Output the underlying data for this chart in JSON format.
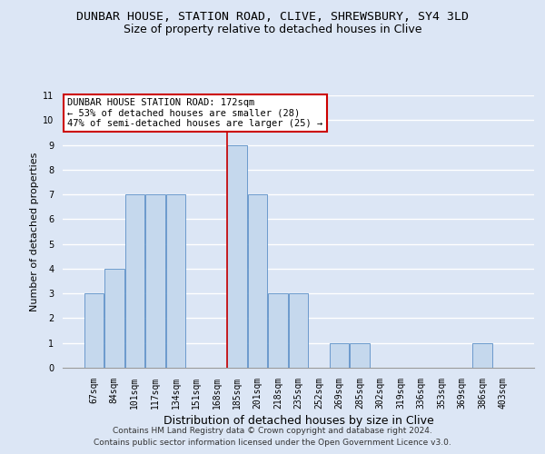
{
  "title": "DUNBAR HOUSE, STATION ROAD, CLIVE, SHREWSBURY, SY4 3LD",
  "subtitle": "Size of property relative to detached houses in Clive",
  "xlabel": "Distribution of detached houses by size in Clive",
  "ylabel": "Number of detached properties",
  "categories": [
    "67sqm",
    "84sqm",
    "101sqm",
    "117sqm",
    "134sqm",
    "151sqm",
    "168sqm",
    "185sqm",
    "201sqm",
    "218sqm",
    "235sqm",
    "252sqm",
    "269sqm",
    "285sqm",
    "302sqm",
    "319sqm",
    "336sqm",
    "353sqm",
    "369sqm",
    "386sqm",
    "403sqm"
  ],
  "values": [
    3,
    4,
    7,
    7,
    7,
    0,
    0,
    9,
    7,
    3,
    3,
    0,
    1,
    1,
    0,
    0,
    0,
    0,
    0,
    1,
    0
  ],
  "bar_color": "#c5d8ed",
  "bar_edge_color": "#5b8fc7",
  "vline_x": 7,
  "vline_color": "#cc0000",
  "annotation_text": "DUNBAR HOUSE STATION ROAD: 172sqm\n← 53% of detached houses are smaller (28)\n47% of semi-detached houses are larger (25) →",
  "annotation_box_facecolor": "#ffffff",
  "annotation_box_edgecolor": "#cc0000",
  "ylim": [
    0,
    11
  ],
  "yticks": [
    0,
    1,
    2,
    3,
    4,
    5,
    6,
    7,
    8,
    9,
    10,
    11
  ],
  "footer1": "Contains HM Land Registry data © Crown copyright and database right 2024.",
  "footer2": "Contains public sector information licensed under the Open Government Licence v3.0.",
  "bg_color": "#dce6f5",
  "grid_color": "#ffffff",
  "title_fontsize": 9.5,
  "subtitle_fontsize": 9,
  "xlabel_fontsize": 9,
  "ylabel_fontsize": 8,
  "tick_fontsize": 7,
  "annotation_fontsize": 7.5,
  "footer_fontsize": 6.5
}
